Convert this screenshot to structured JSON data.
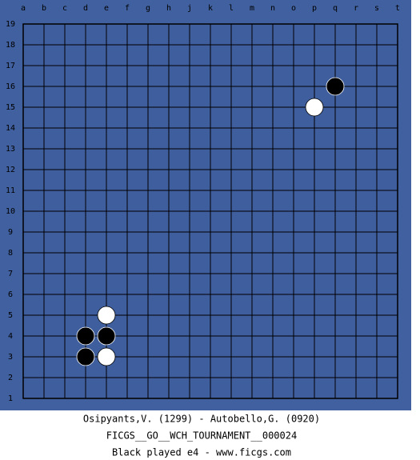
{
  "board": {
    "columns": [
      "a",
      "b",
      "c",
      "d",
      "e",
      "f",
      "g",
      "h",
      "j",
      "k",
      "l",
      "m",
      "n",
      "o",
      "p",
      "q",
      "r",
      "s",
      "t"
    ],
    "rows": [
      19,
      18,
      17,
      16,
      15,
      14,
      13,
      12,
      11,
      10,
      9,
      8,
      7,
      6,
      5,
      4,
      3,
      2,
      1
    ],
    "stones": [
      {
        "color": "black",
        "col": "q",
        "row": 16
      },
      {
        "color": "white",
        "col": "p",
        "row": 15
      },
      {
        "color": "white",
        "col": "e",
        "row": 5
      },
      {
        "color": "black",
        "col": "d",
        "row": 4
      },
      {
        "color": "black",
        "col": "e",
        "row": 4
      },
      {
        "color": "black",
        "col": "d",
        "row": 3
      },
      {
        "color": "white",
        "col": "e",
        "row": 3
      }
    ]
  },
  "footer": {
    "players": "Osipyants,V. (1299) - Autobello,G. (0920)",
    "tournament": "FICGS__GO__WCH_TOURNAMENT__000024",
    "last_move": "Black played e4 - www.ficgs.com"
  }
}
